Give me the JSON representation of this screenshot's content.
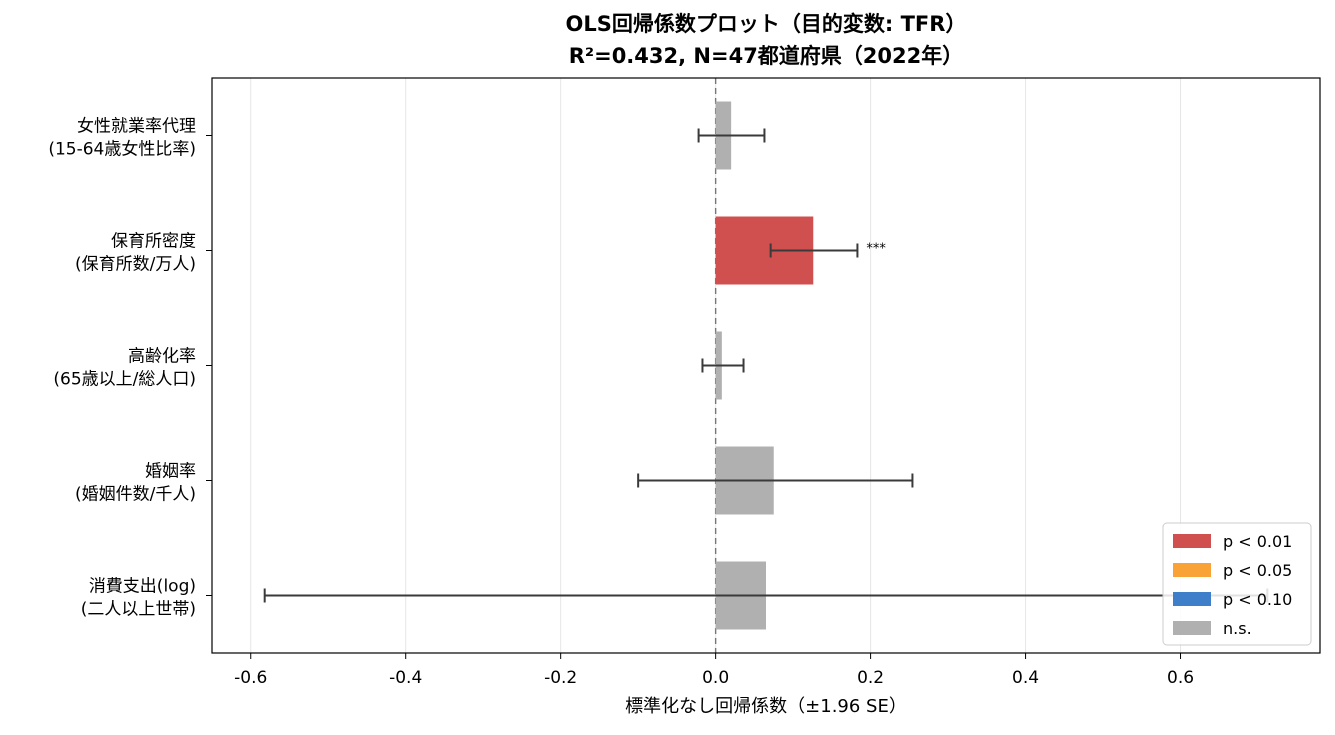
{
  "chart_data": {
    "type": "bar",
    "orientation": "horizontal",
    "title": [
      "OLS回帰係数プロット（目的変数: TFR）",
      "R²=0.432, N=47都道府県（2022年）"
    ],
    "xlabel": "標準化なし回帰係数（±1.96 SE）",
    "xlim": [
      -0.65,
      0.78
    ],
    "xticks": [
      -0.6,
      -0.4,
      -0.2,
      0.0,
      0.2,
      0.4,
      0.6
    ],
    "xtick_labels": [
      "-0.6",
      "-0.4",
      "-0.2",
      "0.0",
      "0.2",
      "0.4",
      "0.6"
    ],
    "grid": "x",
    "zero_line": "dashed",
    "categories": [
      {
        "lines": [
          "女性就業率代理",
          "(15-64歳女性比率)"
        ],
        "coef": 0.02,
        "ci_low": -0.022,
        "ci_high": 0.063,
        "sig": "n.s.",
        "stars": ""
      },
      {
        "lines": [
          "保育所密度",
          "(保育所数/万人)"
        ],
        "coef": 0.126,
        "ci_low": 0.071,
        "ci_high": 0.183,
        "sig": "p < 0.01",
        "stars": "***"
      },
      {
        "lines": [
          "高齢化率",
          "(65歳以上/総人口)"
        ],
        "coef": 0.008,
        "ci_low": -0.017,
        "ci_high": 0.036,
        "sig": "n.s.",
        "stars": ""
      },
      {
        "lines": [
          "婚姻率",
          "(婚姻件数/千人)"
        ],
        "coef": 0.075,
        "ci_low": -0.1,
        "ci_high": 0.254,
        "sig": "n.s.",
        "stars": ""
      },
      {
        "lines": [
          "消費支出(log)",
          "(二人以上世帯)"
        ],
        "coef": 0.065,
        "ci_low": -0.582,
        "ci_high": 0.712,
        "sig": "n.s.",
        "stars": ""
      }
    ],
    "legend": {
      "position": "bottom-right",
      "entries": [
        {
          "label": "p < 0.01",
          "color": "#d05050"
        },
        {
          "label": "p < 0.05",
          "color": "#f9a235"
        },
        {
          "label": "p < 0.10",
          "color": "#3f7ec8"
        },
        {
          "label": "n.s.",
          "color": "#b0b0b0"
        }
      ]
    },
    "colors": {
      "grid": "#e6e6e6",
      "errorbar": "#3a3a3a",
      "zero_line": "#777777"
    }
  }
}
